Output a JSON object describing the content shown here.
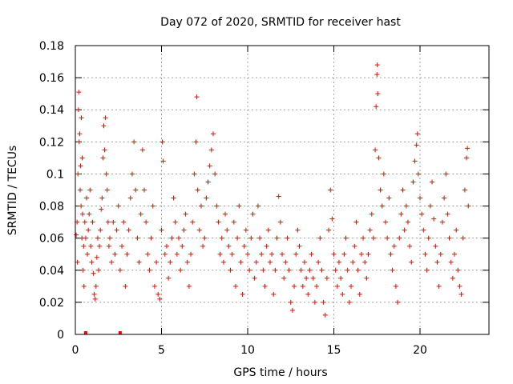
{
  "chart_data": {
    "type": "scatter",
    "title": "Day 072 of 2020, SRMTID for receiver hast",
    "xlabel": "GPS time / hours",
    "ylabel": "SRMTID / TECUs",
    "xlim": [
      0,
      24
    ],
    "ylim": [
      0,
      0.18
    ],
    "xticks": [
      0,
      5,
      10,
      15,
      20
    ],
    "xtick_labels": [
      "0",
      "5",
      "10",
      "15",
      "20"
    ],
    "yticks": [
      0,
      0.02,
      0.04,
      0.06,
      0.08,
      0.1,
      0.12,
      0.14,
      0.16,
      0.18
    ],
    "ytick_labels": [
      "0",
      "0.02",
      "0.04",
      "0.06",
      "0.08",
      "0.1",
      "0.12",
      "0.14",
      "0.16",
      "0.18"
    ],
    "grid": true,
    "marker": "+",
    "color": "#ff0000",
    "series": [
      {
        "name": "SRMTID",
        "points": [
          [
            0.05,
            0.062
          ],
          [
            0.1,
            0.07
          ],
          [
            0.12,
            0.045
          ],
          [
            0.15,
            0.1
          ],
          [
            0.18,
            0.14
          ],
          [
            0.2,
            0.151
          ],
          [
            0.22,
            0.12
          ],
          [
            0.25,
            0.125
          ],
          [
            0.28,
            0.09
          ],
          [
            0.3,
            0.105
          ],
          [
            0.33,
            0.08
          ],
          [
            0.35,
            0.135
          ],
          [
            0.38,
            0.06
          ],
          [
            0.4,
            0.11
          ],
          [
            0.42,
            0.075
          ],
          [
            0.45,
            0.04
          ],
          [
            0.48,
            0.055
          ],
          [
            0.5,
            0.03
          ],
          [
            0.55,
            0.07
          ],
          [
            0.6,
            0.06
          ],
          [
            0.65,
            0.085
          ],
          [
            0.7,
            0.05
          ],
          [
            0.75,
            0.065
          ],
          [
            0.8,
            0.075
          ],
          [
            0.85,
            0.09
          ],
          [
            0.9,
            0.055
          ],
          [
            0.95,
            0.045
          ],
          [
            1.0,
            0.07
          ],
          [
            1.05,
            0.038
          ],
          [
            1.1,
            0.025
          ],
          [
            1.15,
            0.022
          ],
          [
            1.2,
            0.03
          ],
          [
            1.25,
            0.048
          ],
          [
            1.3,
            0.06
          ],
          [
            1.35,
            0.04
          ],
          [
            1.4,
            0.055
          ],
          [
            1.45,
            0.065
          ],
          [
            1.5,
            0.078
          ],
          [
            1.55,
            0.085
          ],
          [
            1.6,
            0.11
          ],
          [
            1.65,
            0.13
          ],
          [
            1.7,
            0.115
          ],
          [
            1.75,
            0.135
          ],
          [
            1.8,
            0.1
          ],
          [
            1.85,
            0.09
          ],
          [
            1.9,
            0.07
          ],
          [
            1.95,
            0.055
          ],
          [
            2.0,
            0.06
          ],
          [
            2.1,
            0.045
          ],
          [
            2.2,
            0.07
          ],
          [
            2.3,
            0.05
          ],
          [
            2.4,
            0.065
          ],
          [
            2.5,
            0.08
          ],
          [
            2.6,
            0.04
          ],
          [
            2.7,
            0.055
          ],
          [
            2.8,
            0.07
          ],
          [
            2.9,
            0.03
          ],
          [
            3.0,
            0.05
          ],
          [
            3.1,
            0.065
          ],
          [
            3.2,
            0.085
          ],
          [
            3.3,
            0.1
          ],
          [
            3.4,
            0.12
          ],
          [
            3.5,
            0.09
          ],
          [
            3.6,
            0.06
          ],
          [
            3.7,
            0.045
          ],
          [
            3.8,
            0.075
          ],
          [
            3.9,
            0.115
          ],
          [
            4.0,
            0.09
          ],
          [
            4.1,
            0.07
          ],
          [
            4.2,
            0.05
          ],
          [
            4.3,
            0.04
          ],
          [
            4.4,
            0.06
          ],
          [
            4.5,
            0.08
          ],
          [
            4.6,
            0.03
          ],
          [
            4.7,
            0.045
          ],
          [
            4.8,
            0.025
          ],
          [
            4.9,
            0.022
          ],
          [
            5.0,
            0.065
          ],
          [
            5.05,
            0.12
          ],
          [
            5.1,
            0.108
          ],
          [
            5.2,
            0.05
          ],
          [
            5.3,
            0.055
          ],
          [
            5.4,
            0.035
          ],
          [
            5.5,
            0.045
          ],
          [
            5.6,
            0.06
          ],
          [
            5.7,
            0.085
          ],
          [
            5.8,
            0.07
          ],
          [
            5.9,
            0.05
          ],
          [
            6.0,
            0.06
          ],
          [
            6.1,
            0.04
          ],
          [
            6.2,
            0.055
          ],
          [
            6.3,
            0.065
          ],
          [
            6.4,
            0.075
          ],
          [
            6.5,
            0.045
          ],
          [
            6.6,
            0.03
          ],
          [
            6.7,
            0.05
          ],
          [
            6.8,
            0.07
          ],
          [
            6.9,
            0.1
          ],
          [
            7.0,
            0.12
          ],
          [
            7.05,
            0.148
          ],
          [
            7.1,
            0.09
          ],
          [
            7.2,
            0.065
          ],
          [
            7.3,
            0.08
          ],
          [
            7.4,
            0.055
          ],
          [
            7.5,
            0.06
          ],
          [
            7.6,
            0.085
          ],
          [
            7.7,
            0.095
          ],
          [
            7.8,
            0.105
          ],
          [
            7.9,
            0.115
          ],
          [
            8.0,
            0.125
          ],
          [
            8.1,
            0.1
          ],
          [
            8.2,
            0.08
          ],
          [
            8.3,
            0.07
          ],
          [
            8.4,
            0.05
          ],
          [
            8.5,
            0.06
          ],
          [
            8.6,
            0.045
          ],
          [
            8.7,
            0.075
          ],
          [
            8.8,
            0.065
          ],
          [
            8.9,
            0.055
          ],
          [
            9.0,
            0.04
          ],
          [
            9.1,
            0.05
          ],
          [
            9.2,
            0.07
          ],
          [
            9.3,
            0.03
          ],
          [
            9.4,
            0.06
          ],
          [
            9.5,
            0.08
          ],
          [
            9.6,
            0.045
          ],
          [
            9.7,
            0.025
          ],
          [
            9.8,
            0.055
          ],
          [
            9.9,
            0.065
          ],
          [
            10.0,
            0.05
          ],
          [
            10.1,
            0.04
          ],
          [
            10.2,
            0.06
          ],
          [
            10.3,
            0.075
          ],
          [
            10.4,
            0.035
          ],
          [
            10.5,
            0.045
          ],
          [
            10.6,
            0.08
          ],
          [
            10.7,
            0.06
          ],
          [
            10.8,
            0.05
          ],
          [
            10.9,
            0.04
          ],
          [
            11.0,
            0.03
          ],
          [
            11.1,
            0.055
          ],
          [
            11.2,
            0.065
          ],
          [
            11.3,
            0.045
          ],
          [
            11.4,
            0.05
          ],
          [
            11.5,
            0.025
          ],
          [
            11.6,
            0.04
          ],
          [
            11.7,
            0.06
          ],
          [
            11.8,
            0.086
          ],
          [
            11.9,
            0.07
          ],
          [
            12.0,
            0.05
          ],
          [
            12.1,
            0.035
          ],
          [
            12.2,
            0.045
          ],
          [
            12.3,
            0.06
          ],
          [
            12.4,
            0.04
          ],
          [
            12.5,
            0.02
          ],
          [
            12.6,
            0.015
          ],
          [
            12.7,
            0.03
          ],
          [
            12.8,
            0.05
          ],
          [
            12.9,
            0.065
          ],
          [
            13.0,
            0.055
          ],
          [
            13.1,
            0.04
          ],
          [
            13.2,
            0.03
          ],
          [
            13.3,
            0.045
          ],
          [
            13.4,
            0.035
          ],
          [
            13.5,
            0.025
          ],
          [
            13.6,
            0.04
          ],
          [
            13.7,
            0.05
          ],
          [
            13.8,
            0.035
          ],
          [
            13.9,
            0.02
          ],
          [
            14.0,
            0.03
          ],
          [
            14.1,
            0.045
          ],
          [
            14.2,
            0.06
          ],
          [
            14.3,
            0.04
          ],
          [
            14.4,
            0.02
          ],
          [
            14.5,
            0.012
          ],
          [
            14.6,
            0.035
          ],
          [
            14.7,
            0.065
          ],
          [
            14.8,
            0.09
          ],
          [
            14.9,
            0.072
          ],
          [
            15.0,
            0.05
          ],
          [
            15.1,
            0.04
          ],
          [
            15.2,
            0.03
          ],
          [
            15.3,
            0.045
          ],
          [
            15.4,
            0.035
          ],
          [
            15.5,
            0.025
          ],
          [
            15.6,
            0.05
          ],
          [
            15.7,
            0.06
          ],
          [
            15.8,
            0.04
          ],
          [
            15.9,
            0.02
          ],
          [
            16.0,
            0.03
          ],
          [
            16.1,
            0.045
          ],
          [
            16.2,
            0.055
          ],
          [
            16.3,
            0.07
          ],
          [
            16.4,
            0.04
          ],
          [
            16.5,
            0.025
          ],
          [
            16.6,
            0.05
          ],
          [
            16.7,
            0.06
          ],
          [
            16.8,
            0.045
          ],
          [
            16.9,
            0.035
          ],
          [
            17.0,
            0.05
          ],
          [
            17.1,
            0.065
          ],
          [
            17.2,
            0.075
          ],
          [
            17.3,
            0.06
          ],
          [
            17.4,
            0.115
          ],
          [
            17.45,
            0.142
          ],
          [
            17.5,
            0.162
          ],
          [
            17.52,
            0.168
          ],
          [
            17.55,
            0.15
          ],
          [
            17.6,
            0.11
          ],
          [
            17.7,
            0.09
          ],
          [
            17.8,
            0.08
          ],
          [
            17.9,
            0.1
          ],
          [
            18.0,
            0.07
          ],
          [
            18.1,
            0.06
          ],
          [
            18.2,
            0.085
          ],
          [
            18.3,
            0.05
          ],
          [
            18.4,
            0.04
          ],
          [
            18.5,
            0.055
          ],
          [
            18.6,
            0.03
          ],
          [
            18.7,
            0.02
          ],
          [
            18.8,
            0.06
          ],
          [
            18.9,
            0.075
          ],
          [
            19.0,
            0.09
          ],
          [
            19.1,
            0.065
          ],
          [
            19.2,
            0.08
          ],
          [
            19.3,
            0.07
          ],
          [
            19.4,
            0.055
          ],
          [
            19.5,
            0.045
          ],
          [
            19.6,
            0.095
          ],
          [
            19.7,
            0.108
          ],
          [
            19.8,
            0.118
          ],
          [
            19.85,
            0.125
          ],
          [
            19.9,
            0.1
          ],
          [
            20.0,
            0.085
          ],
          [
            20.1,
            0.075
          ],
          [
            20.2,
            0.065
          ],
          [
            20.3,
            0.05
          ],
          [
            20.4,
            0.04
          ],
          [
            20.5,
            0.06
          ],
          [
            20.6,
            0.08
          ],
          [
            20.7,
            0.095
          ],
          [
            20.8,
            0.072
          ],
          [
            20.9,
            0.055
          ],
          [
            21.0,
            0.045
          ],
          [
            21.1,
            0.03
          ],
          [
            21.2,
            0.05
          ],
          [
            21.3,
            0.07
          ],
          [
            21.4,
            0.085
          ],
          [
            21.5,
            0.1
          ],
          [
            21.6,
            0.075
          ],
          [
            21.7,
            0.06
          ],
          [
            21.8,
            0.045
          ],
          [
            21.9,
            0.035
          ],
          [
            22.0,
            0.05
          ],
          [
            22.1,
            0.065
          ],
          [
            22.2,
            0.04
          ],
          [
            22.3,
            0.03
          ],
          [
            22.4,
            0.025
          ],
          [
            22.5,
            0.06
          ],
          [
            22.6,
            0.09
          ],
          [
            22.7,
            0.11
          ],
          [
            22.75,
            0.116
          ],
          [
            22.8,
            0.08
          ]
        ]
      }
    ],
    "zero_points": [
      [
        0.6,
        0
      ],
      [
        2.6,
        0
      ]
    ]
  }
}
